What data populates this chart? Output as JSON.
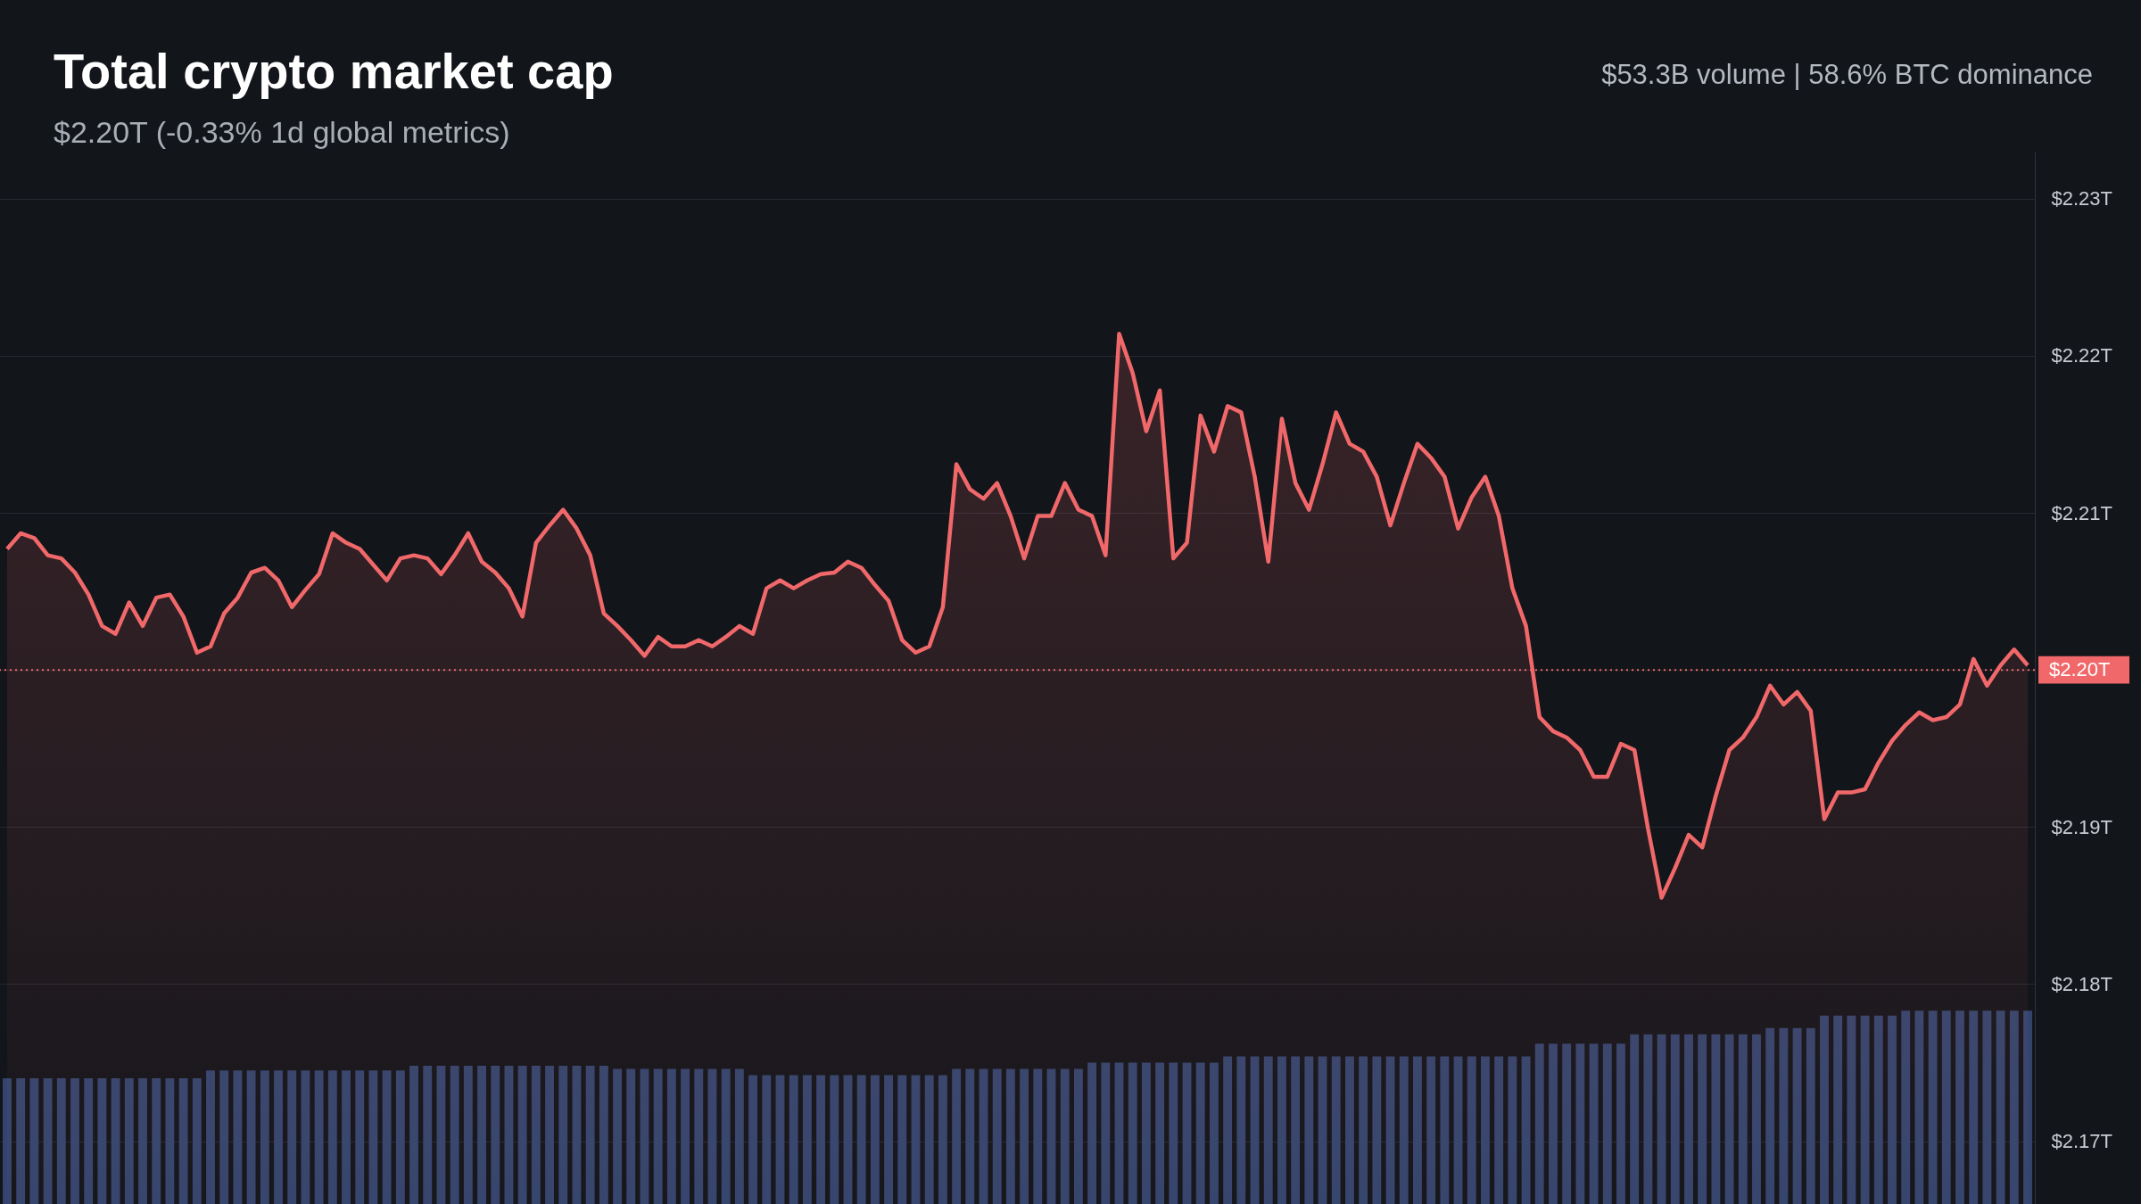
{
  "chart_data": {
    "type": "area",
    "title": "Total crypto market cap",
    "subtitle": "$2.20T (-0.33% 1d global metrics)",
    "annotations": [
      "$53.3B volume | 58.6% BTC dominance"
    ],
    "categories": [
      null,
      null,
      null,
      null,
      null,
      null,
      null,
      null,
      null,
      null,
      null,
      null,
      null,
      null,
      null,
      null,
      null,
      null,
      null,
      null,
      null,
      null,
      null,
      null,
      null,
      null,
      null,
      null,
      null,
      null,
      null,
      null,
      null,
      null,
      null,
      null,
      null,
      null,
      null,
      null,
      null,
      null,
      null,
      null,
      null,
      null,
      null,
      null,
      null,
      null,
      null,
      null,
      null,
      null,
      null,
      null,
      null,
      null,
      null,
      null,
      null,
      null,
      null,
      null,
      null,
      null,
      null,
      null,
      null,
      null,
      null,
      null,
      null,
      null,
      null,
      null,
      null,
      null,
      null,
      null,
      null,
      null,
      null,
      null,
      null,
      null,
      null,
      null,
      null,
      null,
      null,
      null,
      null,
      null,
      null,
      null,
      null,
      null,
      null,
      null,
      null,
      null,
      null,
      null,
      null,
      null,
      null,
      null,
      null,
      null,
      null,
      null,
      null,
      null,
      null,
      null,
      null,
      null,
      null,
      null,
      null,
      null,
      null,
      null,
      null,
      null,
      null,
      null,
      null,
      null,
      null,
      null,
      null,
      null,
      null,
      null,
      null,
      null,
      null,
      null,
      null,
      null,
      null,
      null,
      null,
      null,
      null,
      null,
      null,
      null
    ],
    "series": [
      {
        "type": "bar",
        "color": "#33456e",
        "values": [
          2.174,
          2.174,
          2.174,
          2.174,
          2.174,
          2.174,
          2.174,
          2.174,
          2.174,
          2.174,
          2.174,
          2.174,
          2.174,
          2.174,
          2.174,
          2.1745,
          2.1745,
          2.1745,
          2.1745,
          2.1745,
          2.1745,
          2.1745,
          2.1745,
          2.1745,
          2.1745,
          2.1745,
          2.1745,
          2.1745,
          2.1745,
          2.1745,
          2.1748,
          2.1748,
          2.1748,
          2.1748,
          2.1748,
          2.1748,
          2.1748,
          2.1748,
          2.1748,
          2.1748,
          2.1748,
          2.1748,
          2.1748,
          2.1748,
          2.1748,
          2.1746,
          2.1746,
          2.1746,
          2.1746,
          2.1746,
          2.1746,
          2.1746,
          2.1746,
          2.1746,
          2.1746,
          2.1742,
          2.1742,
          2.1742,
          2.1742,
          2.1742,
          2.1742,
          2.1742,
          2.1742,
          2.1742,
          2.1742,
          2.1742,
          2.1742,
          2.1742,
          2.1742,
          2.1742,
          2.1746,
          2.1746,
          2.1746,
          2.1746,
          2.1746,
          2.1746,
          2.1746,
          2.1746,
          2.1746,
          2.1746,
          2.175,
          2.175,
          2.175,
          2.175,
          2.175,
          2.175,
          2.175,
          2.175,
          2.175,
          2.175,
          2.1754,
          2.1754,
          2.1754,
          2.1754,
          2.1754,
          2.1754,
          2.1754,
          2.1754,
          2.1754,
          2.1754,
          2.1754,
          2.1754,
          2.1754,
          2.1754,
          2.1754,
          2.1754,
          2.1754,
          2.1754,
          2.1754,
          2.1754,
          2.1754,
          2.1754,
          2.1754,
          2.1762,
          2.1762,
          2.1762,
          2.1762,
          2.1762,
          2.1762,
          2.1762,
          2.1768,
          2.1768,
          2.1768,
          2.1768,
          2.1768,
          2.1768,
          2.1768,
          2.1768,
          2.1768,
          2.1768,
          2.1772,
          2.1772,
          2.1772,
          2.1772,
          2.178,
          2.178,
          2.178,
          2.178,
          2.178,
          2.178,
          2.1783,
          2.1783,
          2.1783,
          2.1783,
          2.1783,
          2.1783,
          2.1783,
          2.1783,
          2.1783,
          2.1783
        ]
      },
      {
        "color": "#f0686a",
        "values": [
          2.2077,
          2.2087,
          2.2084,
          2.2073,
          2.2071,
          2.2062,
          2.2048,
          2.2028,
          2.2023,
          2.2043,
          2.2028,
          2.2046,
          2.2048,
          2.2034,
          2.2011,
          2.2015,
          2.2036,
          2.2046,
          2.2062,
          2.2065,
          2.2057,
          2.204,
          2.2051,
          2.2061,
          2.2087,
          2.2081,
          2.2077,
          2.2067,
          2.2057,
          2.2071,
          2.2073,
          2.2071,
          2.2061,
          2.2073,
          2.2087,
          2.2069,
          2.2062,
          2.2052,
          2.2034,
          2.2081,
          2.2092,
          2.2102,
          2.209,
          2.2073,
          2.2036,
          2.2028,
          2.2019,
          2.2009,
          2.2021,
          2.2015,
          2.2015,
          2.2019,
          2.2015,
          2.2021,
          2.2028,
          2.2023,
          2.2052,
          2.2057,
          2.2052,
          2.2057,
          2.2061,
          2.2062,
          2.2069,
          2.2065,
          2.2054,
          2.2044,
          2.2019,
          2.2011,
          2.2015,
          2.204,
          2.2131,
          2.2115,
          2.2109,
          2.2119,
          2.2098,
          2.2071,
          2.2098,
          2.2098,
          2.2119,
          2.2102,
          2.2098,
          2.2073,
          2.2214,
          2.2189,
          2.2152,
          2.2178,
          2.2071,
          2.2081,
          2.2162,
          2.2139,
          2.2168,
          2.2164,
          2.2123,
          2.2069,
          2.216,
          2.2119,
          2.2102,
          2.2131,
          2.2164,
          2.2144,
          2.2139,
          2.2123,
          2.2092,
          2.2119,
          2.2144,
          2.2135,
          2.2123,
          2.209,
          2.211,
          2.2123,
          2.2098,
          2.2052,
          2.2028,
          2.197,
          2.1961,
          2.1957,
          2.1949,
          2.1932,
          2.1932,
          2.1953,
          2.1949,
          2.1899,
          2.1855,
          2.1874,
          2.1895,
          2.1887,
          2.192,
          2.1949,
          2.1957,
          2.197,
          2.199,
          2.1978,
          2.1986,
          2.1974,
          2.1905,
          2.1922,
          2.1922,
          2.1924,
          2.1941,
          2.1955,
          2.1965,
          2.1973,
          2.1968,
          2.197,
          2.1978,
          2.2007,
          2.199,
          2.2003,
          2.2013,
          2.2003
        ]
      }
    ],
    "ylim": [
      2.166,
      2.233
    ],
    "yticks": [
      {
        "value": 2.17,
        "label": "$2.17T"
      },
      {
        "value": 2.18,
        "label": "$2.18T"
      },
      {
        "value": 2.19,
        "label": "$2.19T"
      },
      {
        "value": 2.2,
        "label": "$2.20T"
      },
      {
        "value": 2.21,
        "label": "$2.21T"
      },
      {
        "value": 2.22,
        "label": "$2.22T"
      },
      {
        "value": 2.23,
        "label": "$2.23T"
      }
    ],
    "ref_lines": [
      {
        "axis": "y",
        "value": 2.2,
        "label": "$2.20T",
        "color": "#f0686a",
        "line_style": "dotted"
      }
    ],
    "grid": "y"
  }
}
